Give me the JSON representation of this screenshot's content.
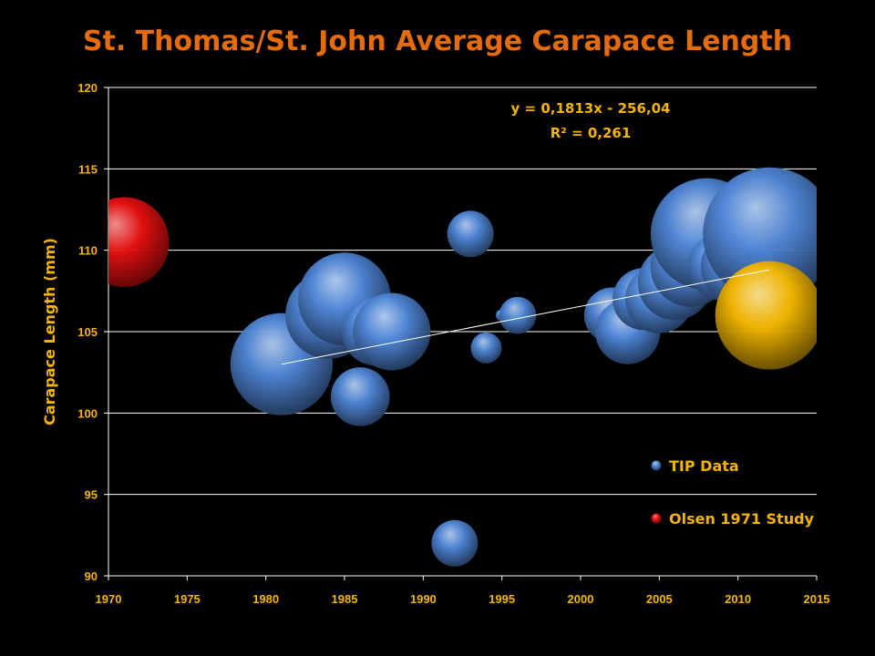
{
  "chart_data": {
    "type": "scatter",
    "subtype": "bubble",
    "title": "St. Thomas/St. John Average Carapace Length",
    "xlabel": "",
    "ylabel": "Carapace Length (mm)",
    "xlim": [
      1970,
      2015
    ],
    "ylim": [
      90,
      120
    ],
    "x_ticks": [
      1970,
      1975,
      1980,
      1985,
      1990,
      1995,
      2000,
      2005,
      2010,
      2015
    ],
    "y_ticks": [
      90,
      95,
      100,
      105,
      110,
      115,
      120
    ],
    "grid": "horizontal",
    "legend_position": "bottom-right",
    "series": [
      {
        "name": "TIP Data",
        "color": "#4F86D6",
        "points": [
          {
            "x": 1981,
            "y": 103,
            "size": 3.3
          },
          {
            "x": 1983,
            "y": 105,
            "size": 1.2
          },
          {
            "x": 1984,
            "y": 106,
            "size": 2.8
          },
          {
            "x": 1985,
            "y": 107,
            "size": 3.0
          },
          {
            "x": 1986,
            "y": 101,
            "size": 1.9
          },
          {
            "x": 1987,
            "y": 105,
            "size": 2.2
          },
          {
            "x": 1988,
            "y": 105,
            "size": 2.5
          },
          {
            "x": 1992,
            "y": 92,
            "size": 1.5
          },
          {
            "x": 1993,
            "y": 111,
            "size": 1.5
          },
          {
            "x": 1994,
            "y": 104,
            "size": 1.0
          },
          {
            "x": 1995,
            "y": 106,
            "size": 0.4
          },
          {
            "x": 1996,
            "y": 106,
            "size": 1.2
          },
          {
            "x": 2002,
            "y": 106,
            "size": 1.8
          },
          {
            "x": 2003,
            "y": 105,
            "size": 2.1
          },
          {
            "x": 2004,
            "y": 107,
            "size": 2.0
          },
          {
            "x": 2005,
            "y": 107,
            "size": 2.2
          },
          {
            "x": 2006,
            "y": 108,
            "size": 2.4
          },
          {
            "x": 2007,
            "y": 109,
            "size": 2.6
          },
          {
            "x": 2008,
            "y": 111,
            "size": 3.6
          },
          {
            "x": 2009,
            "y": 109,
            "size": 2.2
          },
          {
            "x": 2010,
            "y": 109,
            "size": 2.4
          },
          {
            "x": 2011,
            "y": 108,
            "size": 2.0
          },
          {
            "x": 2012,
            "y": 111,
            "size": 4.3
          }
        ]
      },
      {
        "name": "Olsen 1971 Study",
        "color": "#E81010",
        "points": [
          {
            "x": 1971,
            "y": 110.5,
            "size": 2.9
          }
        ]
      },
      {
        "name": "",
        "color": "#F5B800",
        "points": [
          {
            "x": 2012,
            "y": 106,
            "size": 3.5
          }
        ]
      }
    ],
    "trendline": {
      "x_start": 1981,
      "y_start": 103,
      "x_end": 2012,
      "y_end": 108.8,
      "equation": "y = 0,1813x - 256,04",
      "r_squared": "R² = 0,261"
    }
  }
}
